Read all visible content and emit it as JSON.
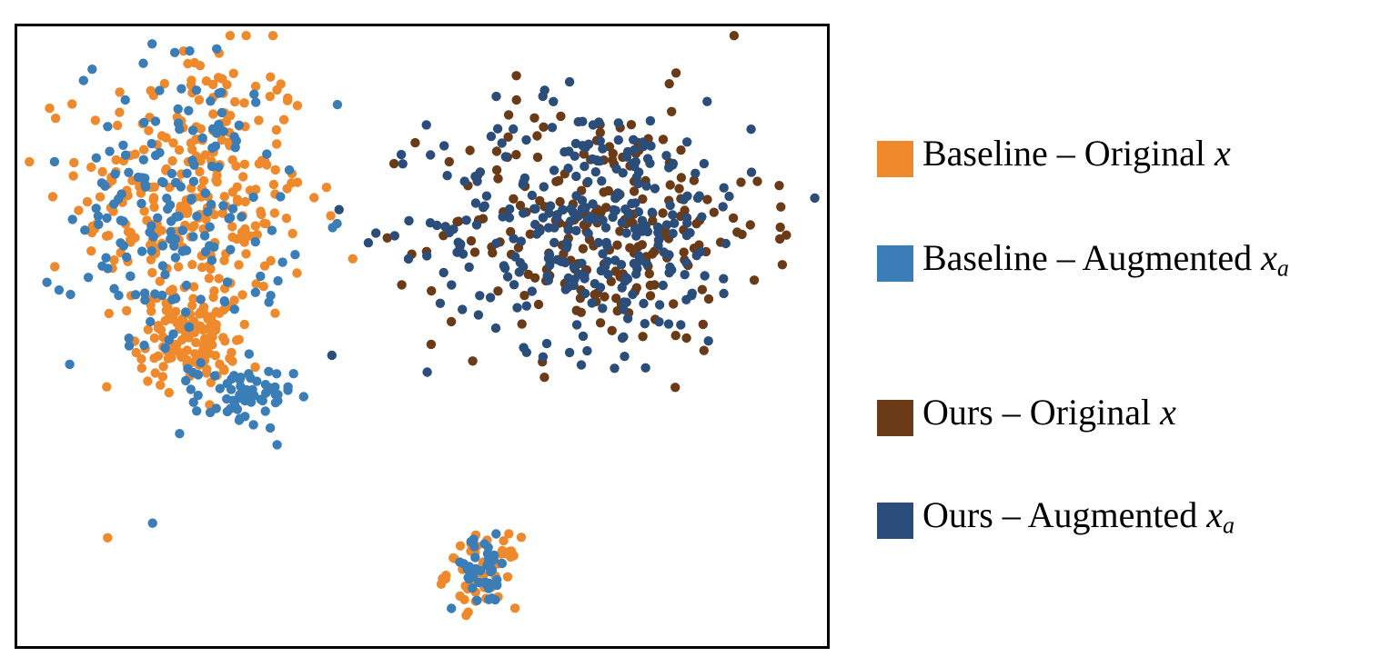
{
  "chart_data": {
    "type": "scatter",
    "title": "",
    "xlabel": "",
    "ylabel": "",
    "grid": false,
    "legend_placement": "right",
    "xlim": [
      0,
      100
    ],
    "ylim": [
      0,
      100
    ],
    "series": [
      {
        "name": "Baseline – Original",
        "math": "x",
        "math_sub": "",
        "color": "#ef8a2c",
        "clusters": [
          {
            "cx": 22,
            "cy": 72,
            "sx": 7.0,
            "sy": 13.0,
            "n": 300
          },
          {
            "cx": 21,
            "cy": 49,
            "sx": 3.0,
            "sy": 3.5,
            "n": 110
          },
          {
            "cx": 57.5,
            "cy": 12,
            "sx": 2.2,
            "sy": 2.8,
            "n": 55
          }
        ]
      },
      {
        "name": "Baseline – Augmented",
        "math": "x",
        "math_sub": "a",
        "color": "#3a7db7",
        "clusters": [
          {
            "cx": 20,
            "cy": 70,
            "sx": 6.5,
            "sy": 13.0,
            "n": 180
          },
          {
            "cx": 28,
            "cy": 40,
            "sx": 3.0,
            "sy": 2.5,
            "n": 60
          },
          {
            "cx": 57.5,
            "cy": 12,
            "sx": 2.2,
            "sy": 2.8,
            "n": 40
          }
        ]
      },
      {
        "name": "Ours – Original",
        "math": "x",
        "math_sub": "",
        "color": "#6b3b17",
        "clusters": [
          {
            "cx": 72,
            "cy": 68,
            "sx": 10.0,
            "sy": 10.0,
            "n": 230
          }
        ]
      },
      {
        "name": "Ours – Augmented",
        "math": "x",
        "math_sub": "a",
        "color": "#2a4d79",
        "clusters": [
          {
            "cx": 71,
            "cy": 68,
            "sx": 10.0,
            "sy": 10.0,
            "n": 300
          }
        ]
      }
    ]
  }
}
